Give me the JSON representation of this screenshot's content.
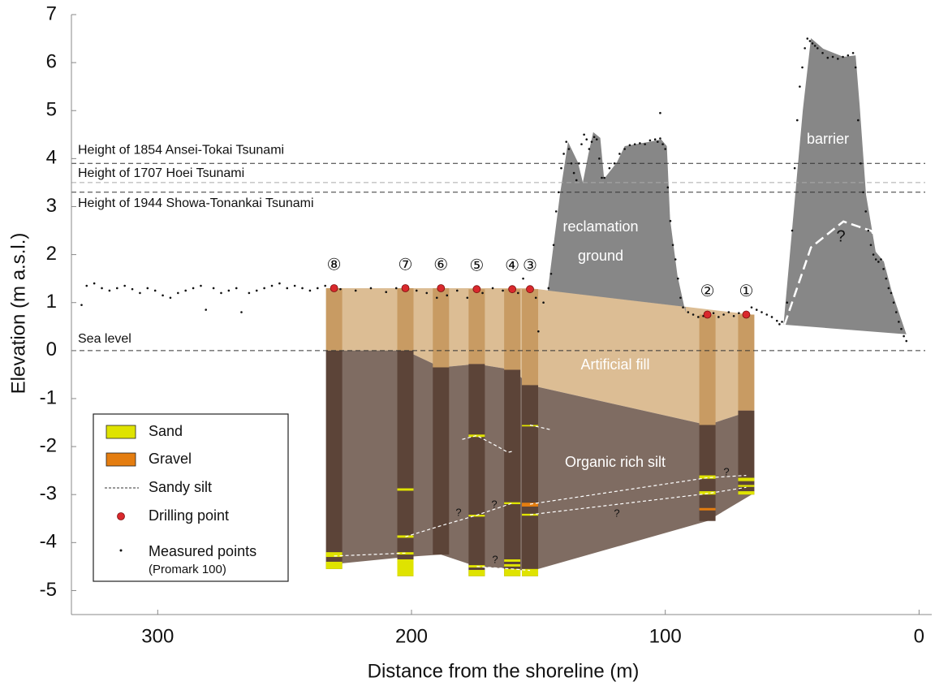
{
  "chart_data": {
    "type": "cross-section",
    "xlabel": "Distance from the shoreline (m)",
    "ylabel": "Elevation (m a.s.l.)",
    "xlim": [
      334,
      -5
    ],
    "ylim": [
      -5.5,
      7
    ],
    "xticks": [
      300,
      200,
      100,
      0
    ],
    "yticks": [
      -5,
      -4,
      -3,
      -2,
      -1,
      0,
      1,
      2,
      3,
      4,
      5,
      6,
      7
    ],
    "reference_lines": [
      {
        "label": "Height of 1854 Ansei-Tokai Tsunami",
        "value": 3.9,
        "color": "#333333"
      },
      {
        "label": "Height of 1707 Hoei Tsunami",
        "value": 3.5,
        "color": "#aaaaaa"
      },
      {
        "label": "Height of 1944 Showa-Tonankai Tsunami",
        "value": 3.3,
        "color": "#333333"
      },
      {
        "label": "Sea level",
        "value": 0,
        "color": "#333333"
      }
    ],
    "regions": [
      {
        "name": "Artificial fill",
        "color": "#dcbd94",
        "x": [
          230.5,
          153.3,
          66,
          66,
          83.4,
          153.3,
          160.3,
          174.3,
          188.4,
          202.4,
          230.5
        ],
        "y": [
          1.3,
          1.3,
          0.75,
          -1.25,
          -1.55,
          -0.72,
          -0.4,
          -0.28,
          -0.35,
          0,
          0
        ]
      },
      {
        "name": "Organic rich silt",
        "color": "#7f6c62",
        "x": [
          230.5,
          202.4,
          188.4,
          174.3,
          160.3,
          153.3,
          83.4,
          66,
          66,
          83.4,
          153.3,
          160.3,
          174.3,
          188.4,
          202.4,
          230.5
        ],
        "y": [
          0,
          0,
          -0.35,
          -0.28,
          -0.4,
          -0.72,
          -1.55,
          -1.25,
          -3.0,
          -3.55,
          -4.6,
          -4.55,
          -4.5,
          -4.25,
          -4.3,
          -4.45
        ]
      }
    ],
    "profiles": [
      {
        "name": [
          "reclamation",
          "ground"
        ],
        "color": "#878787",
        "x": [
          146.3,
          141.5,
          138.3,
          134.4,
          132.5,
          130.3,
          128.4,
          125.6,
          124.1,
          119.1,
          116.0,
          106.4,
          101.6,
          99.4,
          98.1,
          95.2,
          92.0,
          92.0,
          146.3
        ],
        "y": [
          1.25,
          3.25,
          4.35,
          3.92,
          3.5,
          4.09,
          4.55,
          4.43,
          3.58,
          3.92,
          4.26,
          4.35,
          4.4,
          4.26,
          2.74,
          1.56,
          0.79,
          0.91,
          1.25
        ]
      },
      {
        "name": [
          "barrier"
        ],
        "color": "#878787",
        "x": [
          53.4,
          45.8,
          42.6,
          37.8,
          29.8,
          25.0,
          23.4,
          20.9,
          17.1,
          13.9,
          10.7,
          5.0,
          53.4
        ],
        "y": [
          0.54,
          5.02,
          6.51,
          6.29,
          6.12,
          6.15,
          5.1,
          3.25,
          2.06,
          1.86,
          1.22,
          0.34,
          0.54
        ],
        "inner": {
          "x": [
            53,
            42.6,
            29.8,
            18.6,
            6.9
          ],
          "y": [
            0.54,
            2.15,
            2.69,
            2.49,
            0.96
          ]
        }
      }
    ],
    "cores": [
      {
        "label": "⑧",
        "x": 230.5,
        "top": 1.3,
        "fill_bottom": 0,
        "bottom": -4.55,
        "layers": [
          {
            "entry": 0,
            "top": -4.2,
            "bottom": -4.3
          },
          {
            "entry": 0,
            "top": -4.4,
            "bottom": -4.55
          }
        ]
      },
      {
        "label": "⑦",
        "x": 202.4,
        "top": 1.3,
        "fill_bottom": 0,
        "bottom": -4.7,
        "layers": [
          {
            "entry": 0,
            "top": -2.87,
            "bottom": -2.92
          },
          {
            "entry": 0,
            "top": -3.85,
            "bottom": -3.9
          },
          {
            "entry": 0,
            "top": -4.2,
            "bottom": -4.25
          },
          {
            "entry": 0,
            "top": -4.35,
            "bottom": -4.7
          }
        ]
      },
      {
        "label": "⑥",
        "x": 188.4,
        "top": 1.3,
        "fill_bottom": -0.35,
        "bottom": -4.25,
        "layers": []
      },
      {
        "label": "⑤",
        "x": 174.3,
        "top": 1.28,
        "fill_bottom": -0.28,
        "bottom": -4.7,
        "layers": [
          {
            "entry": 0,
            "top": -1.75,
            "bottom": -1.8
          },
          {
            "entry": 0,
            "top": -3.42,
            "bottom": -3.46
          },
          {
            "entry": 0,
            "top": -4.47,
            "bottom": -4.52
          },
          {
            "entry": 0,
            "top": -4.57,
            "bottom": -4.7
          }
        ]
      },
      {
        "label": "④",
        "x": 160.3,
        "top": 1.28,
        "fill_bottom": -0.4,
        "bottom": -4.7,
        "layers": [
          {
            "entry": 0,
            "top": -3.16,
            "bottom": -3.2
          },
          {
            "entry": 0,
            "top": -4.35,
            "bottom": -4.4
          },
          {
            "entry": 0,
            "top": -4.45,
            "bottom": -4.5
          },
          {
            "entry": 0,
            "top": -4.55,
            "bottom": -4.7
          }
        ]
      },
      {
        "label": "③",
        "x": 153.3,
        "top": 1.28,
        "fill_bottom": -0.72,
        "bottom": -4.7,
        "layers": [
          {
            "entry": 0,
            "top": -1.55,
            "bottom": -1.58
          },
          {
            "entry": 1,
            "top": -3.17,
            "bottom": -3.25
          },
          {
            "entry": 0,
            "top": -3.4,
            "bottom": -3.44
          },
          {
            "entry": 0,
            "top": -4.55,
            "bottom": -4.7
          }
        ]
      },
      {
        "label": "②",
        "x": 83.4,
        "top": 0.75,
        "fill_bottom": -1.55,
        "bottom": -3.55,
        "layers": [
          {
            "entry": 0,
            "top": -2.6,
            "bottom": -2.67
          },
          {
            "entry": 0,
            "top": -2.93,
            "bottom": -3.0
          },
          {
            "entry": 1,
            "top": -3.28,
            "bottom": -3.33
          }
        ]
      },
      {
        "label": "①",
        "x": 68.1,
        "top": 0.75,
        "fill_bottom": -1.25,
        "bottom": -3.0,
        "layers": [
          {
            "entry": 0,
            "top": -2.65,
            "bottom": -2.72
          },
          {
            "entry": 0,
            "top": -2.8,
            "bottom": -2.84
          },
          {
            "entry": 0,
            "top": -2.93,
            "bottom": -3.0
          }
        ]
      }
    ],
    "core_colors": {
      "fill": "#c89b63",
      "silt": "#5c4438"
    },
    "correlation_color": "#ffffff",
    "correlations": [
      {
        "x": [
          230.5,
          202.4
        ],
        "y": [
          -4.28,
          -4.22
        ]
      },
      {
        "x": [
          202.4,
          188.4,
          174.3,
          160.3
        ],
        "y": [
          -3.88,
          -3.65,
          -3.43,
          -3.18
        ]
      },
      {
        "x": [
          153.3,
          83.4,
          68.1
        ],
        "y": [
          -3.2,
          -2.65,
          -2.6
        ]
      },
      {
        "x": [
          153.3,
          83.4,
          68.1
        ],
        "y": [
          -3.42,
          -2.98,
          -2.85
        ]
      },
      {
        "x": [
          180,
          174.3,
          166,
          162,
          160.3
        ],
        "y": [
          -1.85,
          -1.77,
          -2.0,
          -2.12,
          -2.1
        ]
      },
      {
        "x": [
          153.3,
          145
        ],
        "y": [
          -1.55,
          -1.65
        ]
      },
      {
        "x": [
          174.3,
          160.3,
          153.3
        ],
        "y": [
          -4.5,
          -4.55,
          -4.58
        ]
      }
    ],
    "annotations": [
      "?",
      "?",
      "?",
      "?",
      "?",
      "?"
    ],
    "measured": {
      "x": [
        330,
        328,
        325,
        322,
        319,
        316,
        313,
        310,
        307,
        304,
        301,
        298,
        295,
        292,
        289,
        286,
        283,
        281,
        278,
        275,
        272,
        269,
        267,
        264,
        261,
        258,
        255,
        252,
        249,
        246,
        243,
        240,
        237,
        234,
        228,
        222,
        216,
        210,
        206,
        198,
        194,
        190,
        186,
        182,
        178,
        172,
        168,
        164,
        158,
        156,
        151,
        150,
        148,
        146,
        145,
        144,
        143,
        142,
        141,
        140,
        139,
        138,
        137,
        136,
        135,
        134,
        133,
        132,
        131,
        130,
        129,
        128,
        127,
        126,
        125,
        124,
        122,
        120,
        118,
        116,
        114,
        112,
        110,
        108,
        106,
        104,
        103,
        102,
        101,
        100,
        99,
        98,
        97,
        96,
        95,
        94,
        93,
        91,
        89,
        87,
        85,
        81,
        79,
        77,
        75,
        73,
        71,
        69,
        66,
        64,
        62,
        60,
        58,
        56,
        55,
        54,
        52,
        50,
        49,
        48,
        47,
        46,
        45,
        44,
        43,
        42,
        41,
        40,
        38,
        36,
        34,
        32,
        30,
        28,
        26,
        25,
        24,
        23,
        22,
        21,
        20,
        19,
        18,
        17,
        16,
        15,
        14,
        13,
        12,
        11,
        10,
        9,
        8,
        7,
        6,
        5,
        102
      ],
      "y": [
        0.95,
        1.35,
        1.4,
        1.3,
        1.25,
        1.3,
        1.35,
        1.28,
        1.2,
        1.3,
        1.25,
        1.15,
        1.1,
        1.2,
        1.25,
        1.3,
        1.35,
        0.85,
        1.3,
        1.2,
        1.25,
        1.3,
        0.8,
        1.2,
        1.25,
        1.3,
        1.35,
        1.4,
        1.3,
        1.35,
        1.3,
        1.25,
        1.3,
        1.35,
        1.28,
        1.25,
        1.3,
        1.22,
        1.3,
        1.25,
        1.2,
        1.1,
        1.15,
        1.25,
        1.1,
        1.2,
        1.3,
        1.25,
        1.2,
        1.5,
        1.1,
        0.4,
        1.0,
        1.3,
        1.6,
        2.2,
        2.9,
        3.3,
        3.8,
        4.1,
        4.35,
        4.2,
        3.9,
        3.7,
        3.55,
        3.9,
        4.3,
        4.5,
        4.4,
        4.2,
        4.35,
        4.45,
        4.4,
        4.0,
        3.6,
        3.6,
        3.8,
        3.9,
        4.1,
        4.2,
        4.28,
        4.3,
        4.32,
        4.3,
        4.38,
        4.4,
        4.35,
        4.42,
        4.3,
        4.2,
        3.4,
        2.7,
        2.2,
        1.9,
        1.5,
        1.1,
        0.9,
        0.8,
        0.75,
        0.7,
        0.72,
        0.78,
        0.7,
        0.75,
        0.8,
        0.72,
        0.78,
        0.75,
        0.9,
        0.85,
        0.8,
        0.75,
        0.7,
        0.62,
        0.55,
        0.6,
        1.0,
        2.5,
        3.8,
        4.8,
        5.5,
        5.9,
        6.3,
        6.5,
        6.45,
        6.4,
        6.35,
        6.3,
        6.2,
        6.1,
        6.12,
        6.08,
        6.12,
        6.15,
        6.2,
        5.9,
        4.8,
        3.9,
        3.3,
        2.9,
        2.5,
        2.2,
        2.0,
        1.9,
        1.85,
        1.9,
        1.7,
        1.5,
        1.3,
        1.2,
        1.0,
        0.8,
        0.6,
        0.45,
        0.3,
        0.2,
        4.95
      ]
    },
    "legend": {
      "corner": "lower left",
      "entries": [
        {
          "name": "Sand",
          "symbol": "swatch",
          "color": "#dfe300"
        },
        {
          "name": "Gravel",
          "symbol": "swatch",
          "color": "#e47d10"
        },
        {
          "name": "Sandy silt",
          "symbol": "line",
          "color": "#333333"
        },
        {
          "name": "Drilling point",
          "symbol": "dot",
          "color": "#d9282c"
        },
        {
          "name": "Measured points",
          "note": "(Promark 100)",
          "symbol": "point",
          "color": "#111111"
        }
      ]
    }
  }
}
